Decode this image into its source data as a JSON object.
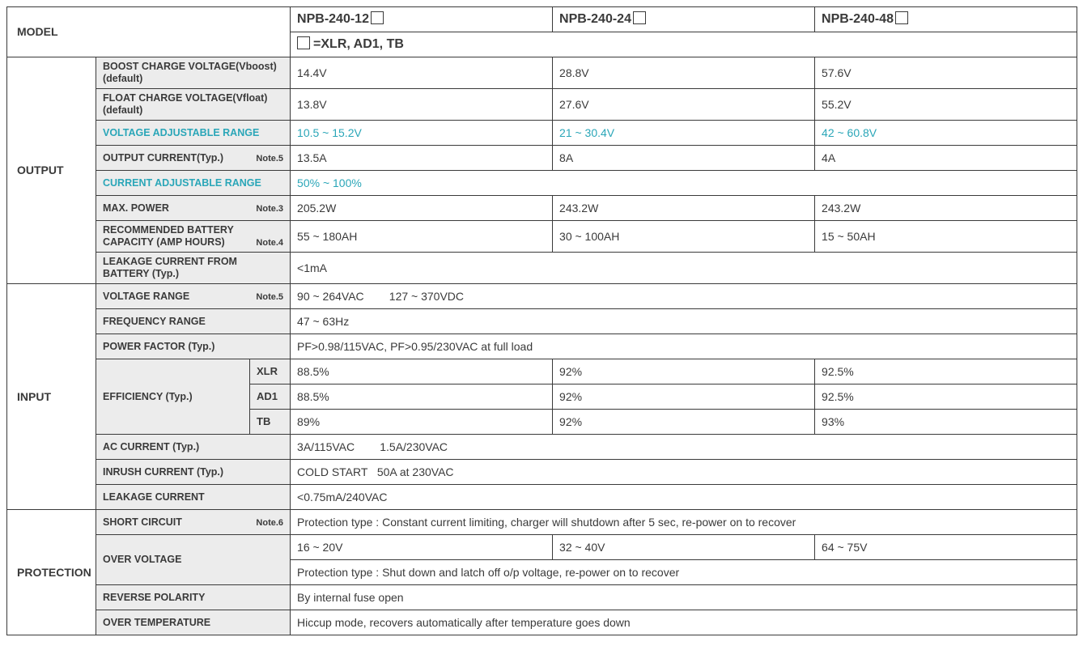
{
  "colors": {
    "border": "#3a3a3a",
    "highlight": "#2aa6b8",
    "shade": "#ececec",
    "text": "#3a3a3a",
    "background": "#ffffff"
  },
  "columns": {
    "section_w": 110,
    "param_w": 190,
    "param_sub_w": 50,
    "val_w": 324
  },
  "header": {
    "model_label": "MODEL",
    "models": [
      "NPB-240-12",
      "NPB-240-24",
      "NPB-240-48"
    ],
    "variant_note": "□ =XLR, AD1, TB"
  },
  "sections": [
    {
      "name": "OUTPUT",
      "rows": [
        {
          "label": "BOOST CHARGE VOLTAGE(Vboost)(default)",
          "small": true,
          "vals": [
            "14.4V",
            "28.8V",
            "57.6V"
          ]
        },
        {
          "label": "FLOAT CHARGE VOLTAGE(Vfloat)(default)",
          "small": true,
          "vals": [
            "13.8V",
            "27.6V",
            "55.2V"
          ]
        },
        {
          "label": "VOLTAGE ADJUSTABLE RANGE",
          "hl": true,
          "vals": [
            "10.5 ~ 15.2V",
            "21 ~ 30.4V",
            "42 ~ 60.8V"
          ],
          "vals_hl": true
        },
        {
          "label": "OUTPUT CURRENT(Typ.)",
          "note": "Note.5",
          "vals": [
            "13.5A",
            "8A",
            "4A"
          ]
        },
        {
          "label": "CURRENT ADJUSTABLE RANGE",
          "hl": true,
          "span": "50% ~ 100%",
          "span_hl": true
        },
        {
          "label": "MAX. POWER",
          "note": "Note.3",
          "vals": [
            "205.2W",
            "243.2W",
            "243.2W"
          ]
        },
        {
          "label": "RECOMMENDED BATTERY CAPACITY (AMP HOURS)",
          "two_line": true,
          "note": "Note.4",
          "vals": [
            "55 ~ 180AH",
            "30 ~ 100AH",
            "15 ~ 50AH"
          ]
        },
        {
          "label": "LEAKAGE CURRENT FROM BATTERY (Typ.)",
          "two_line": true,
          "span": "<1mA"
        }
      ]
    },
    {
      "name": "INPUT",
      "rows": [
        {
          "label": "VOLTAGE RANGE",
          "note": "Note.5",
          "span": "90 ~ 264VAC        127 ~ 370VDC"
        },
        {
          "label": "FREQUENCY RANGE",
          "span": "47 ~ 63Hz"
        },
        {
          "label": "POWER FACTOR (Typ.)",
          "span": "PF>0.98/115VAC, PF>0.95/230VAC at full load"
        },
        {
          "eff_group": {
            "label": "EFFICIENCY (Typ.)",
            "subs": [
              {
                "k": "XLR",
                "vals": [
                  "88.5%",
                  "92%",
                  "92.5%"
                ]
              },
              {
                "k": "AD1",
                "vals": [
                  "88.5%",
                  "92%",
                  "92.5%"
                ]
              },
              {
                "k": "TB",
                "vals": [
                  "89%",
                  "92%",
                  "93%"
                ]
              }
            ]
          }
        },
        {
          "label": "AC CURRENT (Typ.)",
          "span": "3A/115VAC        1.5A/230VAC"
        },
        {
          "label": "INRUSH CURRENT (Typ.)",
          "span": "COLD START   50A at 230VAC"
        },
        {
          "label": "LEAKAGE CURRENT",
          "span": "<0.75mA/240VAC"
        }
      ]
    },
    {
      "name": "PROTECTION",
      "rows": [
        {
          "label": "SHORT CIRCUIT",
          "note": "Note.6",
          "span": "Protection type : Constant current limiting, charger will shutdown after 5 sec, re-power on to recover"
        },
        {
          "ov_group": {
            "label": "OVER VOLTAGE",
            "vals": [
              "16 ~ 20V",
              "32 ~ 40V",
              "64 ~ 75V"
            ],
            "span": "Protection type : Shut down and latch off o/p voltage, re-power on to recover"
          }
        },
        {
          "label": "REVERSE POLARITY",
          "span": "By internal fuse open"
        },
        {
          "label": "OVER TEMPERATURE",
          "span": "Hiccup mode, recovers automatically after temperature goes down"
        }
      ]
    }
  ]
}
